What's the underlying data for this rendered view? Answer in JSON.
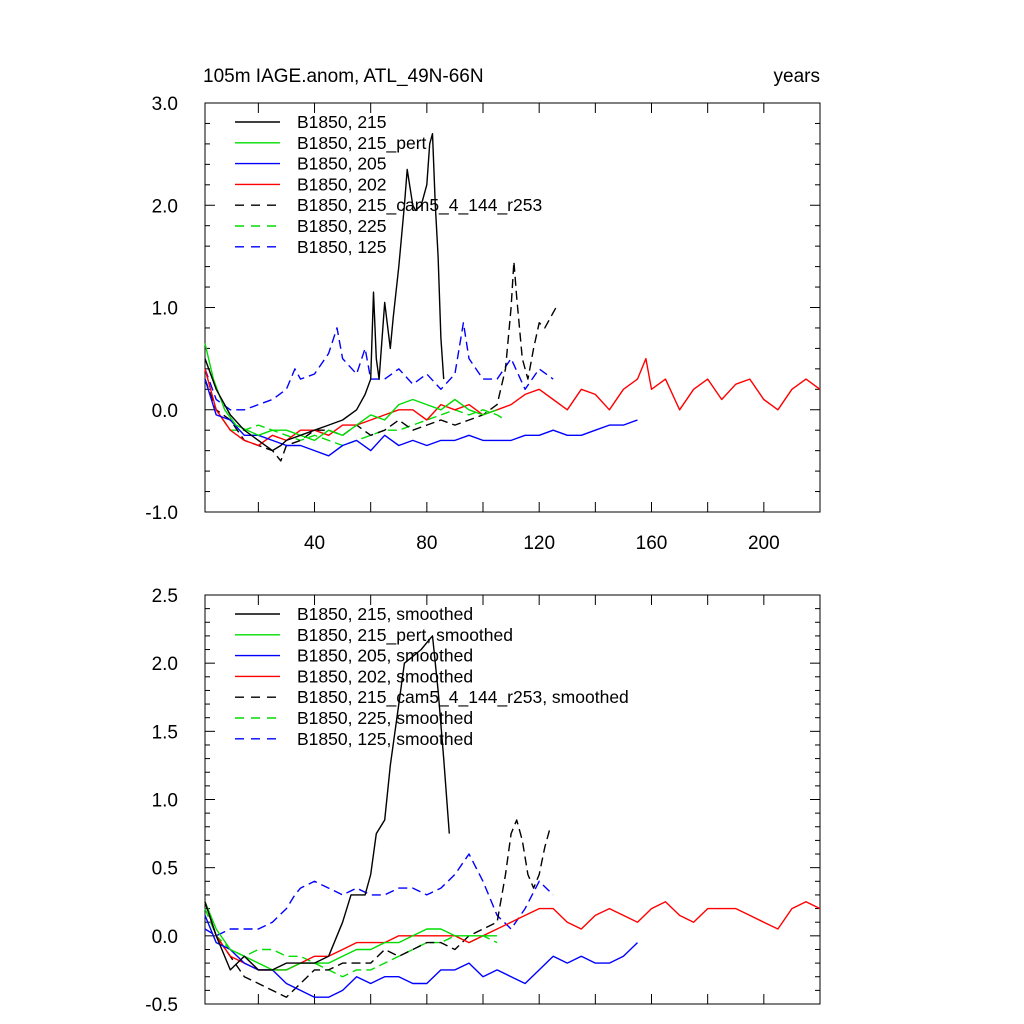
{
  "figure": {
    "title_left": "105m IAGE.anom, ATL_49N-66N",
    "title_right": "years"
  },
  "chart_data": [
    {
      "type": "line",
      "panel": "top",
      "title": "105m IAGE.anom, ATL_49N-66N",
      "units_label": "years",
      "xlim": [
        1,
        220
      ],
      "ylim": [
        -1.0,
        3.0
      ],
      "x_ticks": [
        40,
        80,
        120,
        160,
        200
      ],
      "x_tick_labels": [
        "40",
        "80",
        "120",
        "160",
        "200"
      ],
      "y_ticks": [
        -1.0,
        0.0,
        1.0,
        2.0,
        3.0
      ],
      "y_tick_labels": [
        "-1.0",
        "0.0",
        "1.0",
        "2.0",
        "3.0"
      ],
      "legend_position": "top-left",
      "series": [
        {
          "name": "B1850, 215",
          "color": "#000000",
          "dash": "solid",
          "x": [
            1,
            5,
            10,
            15,
            20,
            25,
            28,
            30,
            35,
            40,
            45,
            50,
            55,
            58,
            60,
            61,
            62,
            63,
            65,
            67,
            68,
            70,
            72,
            73,
            75,
            76,
            78,
            80,
            81,
            82,
            83,
            84,
            85,
            86
          ],
          "y": [
            0.5,
            0.2,
            -0.05,
            -0.2,
            -0.3,
            -0.4,
            -0.35,
            -0.3,
            -0.25,
            -0.2,
            -0.15,
            -0.1,
            0.0,
            0.15,
            0.3,
            1.15,
            0.5,
            0.3,
            1.05,
            0.6,
            0.9,
            1.4,
            2.0,
            2.35,
            2.0,
            1.95,
            2.0,
            2.2,
            2.6,
            2.7,
            2.0,
            1.5,
            0.7,
            0.3
          ]
        },
        {
          "name": "B1850, 215_pert",
          "color": "#00dd00",
          "dash": "solid",
          "x": [
            1,
            4,
            8,
            12,
            16,
            20,
            25,
            30,
            35,
            40,
            45,
            50,
            55,
            60,
            65,
            70,
            75,
            80,
            85,
            90,
            95,
            100,
            105
          ],
          "y": [
            0.65,
            0.3,
            0.0,
            -0.15,
            -0.2,
            -0.25,
            -0.2,
            -0.2,
            -0.25,
            -0.3,
            -0.2,
            -0.25,
            -0.15,
            -0.05,
            -0.1,
            0.05,
            0.1,
            0.05,
            0.0,
            0.1,
            0.0,
            -0.05,
            0.0
          ]
        },
        {
          "name": "B1850, 205",
          "color": "#0000ff",
          "dash": "solid",
          "x": [
            1,
            5,
            10,
            15,
            20,
            25,
            30,
            35,
            40,
            45,
            50,
            55,
            60,
            65,
            70,
            75,
            80,
            85,
            90,
            95,
            100,
            105,
            110,
            115,
            120,
            125,
            130,
            135,
            140,
            145,
            150,
            155
          ],
          "y": [
            0.3,
            -0.05,
            -0.1,
            -0.25,
            -0.25,
            -0.3,
            -0.35,
            -0.35,
            -0.4,
            -0.45,
            -0.35,
            -0.3,
            -0.4,
            -0.25,
            -0.35,
            -0.3,
            -0.35,
            -0.3,
            -0.3,
            -0.25,
            -0.3,
            -0.3,
            -0.3,
            -0.25,
            -0.25,
            -0.2,
            -0.25,
            -0.25,
            -0.2,
            -0.15,
            -0.15,
            -0.1
          ]
        },
        {
          "name": "B1850, 202",
          "color": "#ff0000",
          "dash": "solid",
          "x": [
            1,
            5,
            10,
            15,
            20,
            25,
            30,
            35,
            40,
            45,
            50,
            55,
            60,
            65,
            70,
            75,
            80,
            85,
            90,
            95,
            100,
            105,
            110,
            115,
            120,
            125,
            130,
            135,
            140,
            145,
            150,
            155,
            158,
            160,
            165,
            170,
            175,
            180,
            185,
            190,
            195,
            200,
            205,
            210,
            215,
            220
          ],
          "y": [
            0.4,
            0.0,
            -0.2,
            -0.3,
            -0.35,
            -0.25,
            -0.3,
            -0.2,
            -0.2,
            -0.25,
            -0.15,
            -0.15,
            -0.1,
            -0.05,
            0.0,
            0.0,
            -0.1,
            0.05,
            0.0,
            0.05,
            -0.05,
            0.0,
            0.05,
            0.15,
            0.2,
            0.1,
            0.0,
            0.2,
            0.15,
            0.0,
            0.2,
            0.3,
            0.5,
            0.2,
            0.3,
            0.0,
            0.2,
            0.3,
            0.1,
            0.25,
            0.3,
            0.1,
            0.0,
            0.2,
            0.3,
            0.2
          ]
        },
        {
          "name": "B1850, 215_cam5_4_144_r253",
          "color": "#000000",
          "dash": "dashed",
          "x": [
            1,
            5,
            10,
            15,
            20,
            25,
            28,
            30,
            35,
            40,
            45,
            50,
            55,
            60,
            65,
            70,
            75,
            80,
            85,
            90,
            95,
            100,
            105,
            108,
            110,
            111,
            112,
            114,
            116,
            118,
            120,
            122,
            124,
            126
          ],
          "y": [
            0.3,
            0.0,
            -0.1,
            -0.3,
            -0.35,
            -0.4,
            -0.5,
            -0.35,
            -0.3,
            -0.2,
            -0.2,
            -0.25,
            -0.15,
            -0.25,
            -0.2,
            -0.1,
            -0.2,
            -0.15,
            -0.1,
            -0.15,
            -0.1,
            -0.05,
            0.05,
            0.4,
            1.0,
            1.45,
            1.1,
            0.5,
            0.3,
            0.6,
            0.85,
            0.8,
            0.9,
            1.0
          ]
        },
        {
          "name": "B1850, 225",
          "color": "#00dd00",
          "dash": "dashed",
          "x": [
            1,
            5,
            10,
            15,
            20,
            25,
            30,
            35,
            40,
            45,
            50,
            55,
            60,
            65,
            70,
            75,
            80,
            85,
            90,
            95,
            100,
            105,
            108
          ],
          "y": [
            0.3,
            0.0,
            -0.2,
            -0.2,
            -0.15,
            -0.2,
            -0.25,
            -0.3,
            -0.25,
            -0.3,
            -0.35,
            -0.3,
            -0.25,
            -0.2,
            -0.2,
            -0.15,
            -0.1,
            -0.05,
            0.0,
            -0.05,
            0.0,
            -0.05,
            -0.1
          ]
        },
        {
          "name": "B1850, 125",
          "color": "#0000ff",
          "dash": "dashed",
          "x": [
            1,
            5,
            10,
            15,
            20,
            25,
            30,
            33,
            35,
            40,
            45,
            48,
            50,
            55,
            58,
            60,
            65,
            70,
            75,
            80,
            85,
            90,
            93,
            95,
            100,
            105,
            110,
            115,
            120,
            125
          ],
          "y": [
            0.4,
            0.1,
            0.0,
            0.0,
            0.05,
            0.1,
            0.2,
            0.4,
            0.3,
            0.35,
            0.55,
            0.8,
            0.5,
            0.35,
            0.6,
            0.3,
            0.3,
            0.4,
            0.25,
            0.35,
            0.2,
            0.35,
            0.85,
            0.5,
            0.3,
            0.3,
            0.5,
            0.2,
            0.4,
            0.3
          ]
        }
      ]
    },
    {
      "type": "line",
      "panel": "bottom",
      "xlim": [
        1,
        220
      ],
      "ylim": [
        -0.5,
        2.5
      ],
      "y_ticks": [
        -0.5,
        0.0,
        0.5,
        1.0,
        1.5,
        2.0,
        2.5
      ],
      "y_tick_labels": [
        "-0.5",
        "0.0",
        "0.5",
        "1.0",
        "1.5",
        "2.0",
        "2.5"
      ],
      "legend_position": "top-left",
      "series": [
        {
          "name": "B1850, 215, smoothed",
          "color": "#000000",
          "dash": "solid",
          "x": [
            1,
            5,
            10,
            15,
            20,
            25,
            30,
            35,
            40,
            45,
            50,
            53,
            55,
            58,
            60,
            62,
            65,
            67,
            70,
            72,
            75,
            78,
            80,
            82,
            84,
            86,
            88
          ],
          "y": [
            0.25,
            0.0,
            -0.25,
            -0.15,
            -0.25,
            -0.25,
            -0.2,
            -0.2,
            -0.2,
            -0.15,
            0.1,
            0.3,
            0.3,
            0.3,
            0.45,
            0.75,
            0.85,
            1.25,
            1.7,
            2.0,
            2.05,
            2.1,
            2.15,
            2.2,
            1.8,
            1.3,
            0.75
          ]
        },
        {
          "name": "B1850, 215_pert, smoothed",
          "color": "#00dd00",
          "dash": "solid",
          "x": [
            1,
            5,
            10,
            15,
            20,
            25,
            30,
            35,
            40,
            45,
            50,
            55,
            60,
            65,
            70,
            75,
            80,
            85,
            90,
            95,
            100,
            105
          ],
          "y": [
            0.25,
            0.05,
            -0.1,
            -0.15,
            -0.2,
            -0.25,
            -0.25,
            -0.2,
            -0.2,
            -0.2,
            -0.15,
            -0.1,
            -0.1,
            -0.05,
            -0.05,
            0.0,
            0.05,
            0.05,
            0.0,
            0.0,
            0.0,
            0.0
          ]
        },
        {
          "name": "B1850, 205, smoothed",
          "color": "#0000ff",
          "dash": "solid",
          "x": [
            1,
            5,
            10,
            15,
            20,
            25,
            30,
            35,
            40,
            45,
            50,
            55,
            60,
            65,
            70,
            75,
            80,
            85,
            90,
            95,
            100,
            105,
            110,
            115,
            120,
            125,
            130,
            135,
            140,
            145,
            150,
            155
          ],
          "y": [
            0.15,
            -0.05,
            -0.1,
            -0.2,
            -0.25,
            -0.25,
            -0.35,
            -0.4,
            -0.45,
            -0.45,
            -0.4,
            -0.3,
            -0.35,
            -0.3,
            -0.3,
            -0.35,
            -0.35,
            -0.25,
            -0.25,
            -0.2,
            -0.3,
            -0.25,
            -0.3,
            -0.35,
            -0.25,
            -0.15,
            -0.2,
            -0.15,
            -0.2,
            -0.2,
            -0.15,
            -0.05
          ]
        },
        {
          "name": "B1850, 202, smoothed",
          "color": "#ff0000",
          "dash": "solid",
          "x": [
            1,
            5,
            10,
            15,
            20,
            25,
            30,
            35,
            40,
            45,
            50,
            55,
            60,
            65,
            70,
            75,
            80,
            85,
            90,
            95,
            100,
            105,
            110,
            115,
            120,
            125,
            130,
            135,
            140,
            145,
            150,
            155,
            160,
            165,
            170,
            175,
            180,
            185,
            190,
            195,
            200,
            205,
            210,
            215,
            220
          ],
          "y": [
            0.25,
            0.0,
            -0.15,
            -0.2,
            -0.25,
            -0.25,
            -0.25,
            -0.2,
            -0.15,
            -0.15,
            -0.1,
            -0.05,
            -0.05,
            -0.05,
            0.0,
            0.0,
            0.0,
            0.0,
            0.0,
            -0.05,
            0.0,
            0.05,
            0.1,
            0.15,
            0.2,
            0.2,
            0.1,
            0.05,
            0.15,
            0.2,
            0.15,
            0.1,
            0.2,
            0.25,
            0.15,
            0.1,
            0.2,
            0.2,
            0.2,
            0.15,
            0.1,
            0.05,
            0.2,
            0.25,
            0.2
          ]
        },
        {
          "name": "B1850, 215_cam5_4_144_r253, smoothed",
          "color": "#000000",
          "dash": "dashed",
          "x": [
            1,
            5,
            10,
            15,
            20,
            25,
            30,
            35,
            40,
            45,
            50,
            55,
            60,
            65,
            70,
            75,
            80,
            85,
            90,
            95,
            100,
            105,
            108,
            110,
            112,
            114,
            116,
            118,
            120,
            122,
            124
          ],
          "y": [
            0.25,
            0.0,
            -0.15,
            -0.3,
            -0.35,
            -0.4,
            -0.45,
            -0.35,
            -0.25,
            -0.25,
            -0.2,
            -0.2,
            -0.2,
            -0.1,
            -0.15,
            -0.1,
            -0.05,
            -0.05,
            -0.1,
            0.0,
            0.05,
            0.1,
            0.45,
            0.75,
            0.85,
            0.7,
            0.45,
            0.35,
            0.45,
            0.65,
            0.8
          ]
        },
        {
          "name": "B1850, 225, smoothed",
          "color": "#00dd00",
          "dash": "dashed",
          "x": [
            1,
            5,
            10,
            15,
            20,
            25,
            30,
            35,
            40,
            45,
            50,
            55,
            60,
            65,
            70,
            75,
            80,
            85,
            90,
            95,
            100,
            105
          ],
          "y": [
            0.2,
            0.0,
            -0.1,
            -0.15,
            -0.1,
            -0.1,
            -0.15,
            -0.15,
            -0.2,
            -0.25,
            -0.3,
            -0.25,
            -0.25,
            -0.2,
            -0.15,
            -0.1,
            -0.05,
            -0.05,
            0.0,
            -0.05,
            0.0,
            -0.05
          ]
        },
        {
          "name": "B1850, 125, smoothed",
          "color": "#0000ff",
          "dash": "dashed",
          "x": [
            1,
            5,
            10,
            15,
            20,
            25,
            30,
            33,
            35,
            40,
            45,
            50,
            55,
            60,
            65,
            70,
            75,
            80,
            85,
            90,
            95,
            100,
            105,
            110,
            115,
            120,
            125
          ],
          "y": [
            0.05,
            0.0,
            0.05,
            0.05,
            0.05,
            0.1,
            0.2,
            0.3,
            0.35,
            0.4,
            0.35,
            0.3,
            0.35,
            0.3,
            0.3,
            0.35,
            0.35,
            0.3,
            0.35,
            0.45,
            0.6,
            0.4,
            0.15,
            0.05,
            0.2,
            0.4,
            0.3
          ]
        }
      ]
    }
  ]
}
